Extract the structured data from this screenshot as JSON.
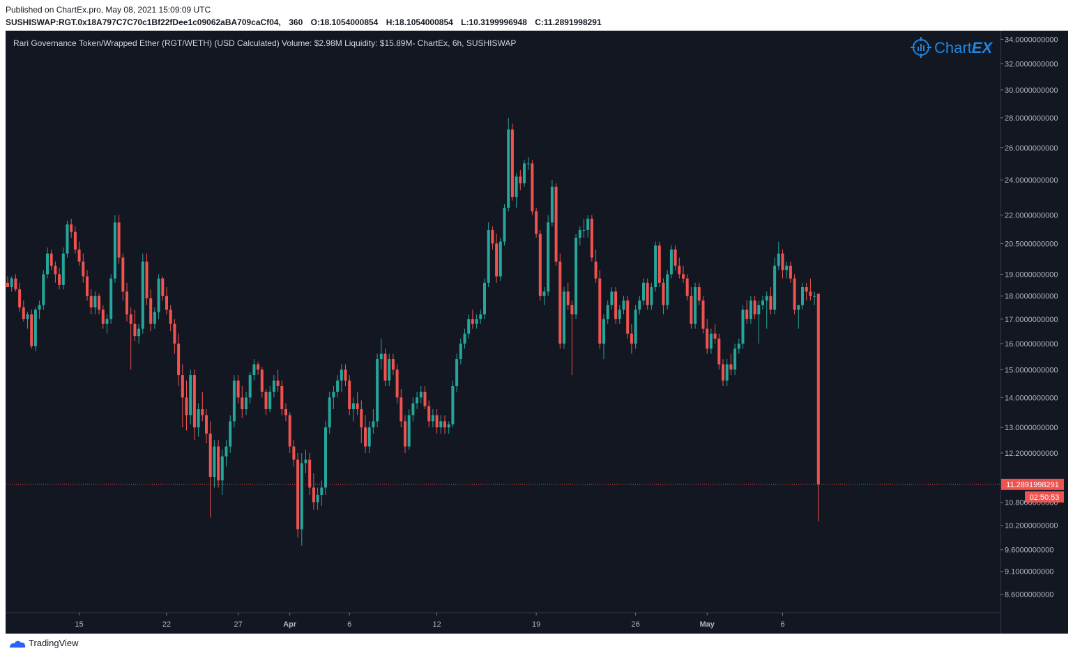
{
  "published": "Published on ChartEx.pro, May 08, 2021 15:09:09 UTC",
  "symbol_line": {
    "symbol": "SUSHISWAP:RGT.0x18A797C7C70c1Bf22fDee1c09062aBA709caCf04,",
    "interval": "360",
    "open": "O:18.1054000854",
    "high": "H:18.1054000854",
    "low": "L:10.3199996948",
    "close": "C:11.2891998291"
  },
  "legend_text": "Rari Governance Token/Wrapped Ether (RGT/WETH) (USD Calculated) Volume:  $2.98M  Liquidity:  $15.89M- ChartEx, 6h,  SUSHISWAP",
  "watermark": {
    "logo": "chartex-logo-icon",
    "text_a": "Chart",
    "text_b": "EX"
  },
  "footer": {
    "brand": "TradingView",
    "icon": "tradingview-logo-icon"
  },
  "colors": {
    "background": "#131722",
    "up": "#26a69a",
    "down": "#ef5350",
    "axis_text": "#b2b5be"
  },
  "chart_data": {
    "type": "candlestick",
    "scale": "log",
    "ylim": [
      8.3,
      34.5
    ],
    "y_ticks": [
      {
        "value": 34.0,
        "label": "34.0000000000"
      },
      {
        "value": 32.0,
        "label": "32.0000000000"
      },
      {
        "value": 30.0,
        "label": "30.0000000000"
      },
      {
        "value": 28.0,
        "label": "28.0000000000"
      },
      {
        "value": 26.0,
        "label": "26.0000000000"
      },
      {
        "value": 24.0,
        "label": "24.0000000000"
      },
      {
        "value": 22.0,
        "label": "22.0000000000"
      },
      {
        "value": 20.5,
        "label": "20.5000000000"
      },
      {
        "value": 19.0,
        "label": "19.0000000000"
      },
      {
        "value": 18.0,
        "label": "18.0000000000"
      },
      {
        "value": 17.0,
        "label": "17.0000000000"
      },
      {
        "value": 16.0,
        "label": "16.0000000000"
      },
      {
        "value": 15.0,
        "label": "15.0000000000"
      },
      {
        "value": 14.0,
        "label": "14.0000000000"
      },
      {
        "value": 13.0,
        "label": "13.0000000000"
      },
      {
        "value": 12.2,
        "label": "12.2000000000"
      },
      {
        "value": 10.8,
        "label": "10.8000000000"
      },
      {
        "value": 10.2,
        "label": "10.2000000000"
      },
      {
        "value": 9.6,
        "label": "9.6000000000"
      },
      {
        "value": 9.1,
        "label": "9.1000000000"
      },
      {
        "value": 8.6,
        "label": "8.6000000000"
      }
    ],
    "x_ticks": [
      {
        "index": 18,
        "label": "15",
        "bold": false
      },
      {
        "index": 40,
        "label": "22",
        "bold": false
      },
      {
        "index": 58,
        "label": "27",
        "bold": false
      },
      {
        "index": 71,
        "label": "Apr",
        "bold": true
      },
      {
        "index": 86,
        "label": "6",
        "bold": false
      },
      {
        "index": 108,
        "label": "12",
        "bold": false
      },
      {
        "index": 133,
        "label": "19",
        "bold": false
      },
      {
        "index": 158,
        "label": "26",
        "bold": false
      },
      {
        "index": 176,
        "label": "May",
        "bold": true
      },
      {
        "index": 195,
        "label": "6",
        "bold": false
      }
    ],
    "last_price": {
      "value": 11.2891998291,
      "label": "11.2891998291",
      "countdown": "02:50:53"
    },
    "candles": [
      [
        18.6,
        18.9,
        18.4,
        18.4
      ],
      [
        18.4,
        18.9,
        18.2,
        18.8
      ],
      [
        18.8,
        19.0,
        18.2,
        18.3
      ],
      [
        18.3,
        18.6,
        17.3,
        17.5
      ],
      [
        17.5,
        17.8,
        16.9,
        17.0
      ],
      [
        17.0,
        17.3,
        16.6,
        17.2
      ],
      [
        17.2,
        17.4,
        15.8,
        15.9
      ],
      [
        15.9,
        17.5,
        15.7,
        17.4
      ],
      [
        17.4,
        17.8,
        17.0,
        17.6
      ],
      [
        17.6,
        19.2,
        17.4,
        19.0
      ],
      [
        19.0,
        20.3,
        18.8,
        20.0
      ],
      [
        20.0,
        20.2,
        19.2,
        19.4
      ],
      [
        19.4,
        19.6,
        18.6,
        19.0
      ],
      [
        19.0,
        19.3,
        18.3,
        18.5
      ],
      [
        18.5,
        20.3,
        18.3,
        20.0
      ],
      [
        20.0,
        21.7,
        19.8,
        21.5
      ],
      [
        21.5,
        21.8,
        20.8,
        21.1
      ],
      [
        21.1,
        21.4,
        20.0,
        20.2
      ],
      [
        20.2,
        20.6,
        19.4,
        19.6
      ],
      [
        19.6,
        20.0,
        18.6,
        18.9
      ],
      [
        18.9,
        19.2,
        17.8,
        18.0
      ],
      [
        18.0,
        18.3,
        17.2,
        17.5
      ],
      [
        17.5,
        18.2,
        17.2,
        18.0
      ],
      [
        18.0,
        18.1,
        17.2,
        17.4
      ],
      [
        17.4,
        17.6,
        16.6,
        16.8
      ],
      [
        16.8,
        17.2,
        16.4,
        17.0
      ],
      [
        17.0,
        19.0,
        16.8,
        18.8
      ],
      [
        18.8,
        22.0,
        18.6,
        21.6
      ],
      [
        21.6,
        22.0,
        19.5,
        19.8
      ],
      [
        19.8,
        20.0,
        17.8,
        18.2
      ],
      [
        18.2,
        18.6,
        16.9,
        17.2
      ],
      [
        17.2,
        17.5,
        15.0,
        16.8
      ],
      [
        16.8,
        17.4,
        16.1,
        16.3
      ],
      [
        16.3,
        16.8,
        16.0,
        16.6
      ],
      [
        16.6,
        20.0,
        16.4,
        19.6
      ],
      [
        19.6,
        20.0,
        17.6,
        17.9
      ],
      [
        17.9,
        18.3,
        16.5,
        16.8
      ],
      [
        16.8,
        17.5,
        16.6,
        17.3
      ],
      [
        17.3,
        19.0,
        17.0,
        18.8
      ],
      [
        18.8,
        18.9,
        17.8,
        18.0
      ],
      [
        18.0,
        18.4,
        17.2,
        17.4
      ],
      [
        17.4,
        17.6,
        16.5,
        16.8
      ],
      [
        16.8,
        17.0,
        15.6,
        16.0
      ],
      [
        16.0,
        16.4,
        14.4,
        14.8
      ],
      [
        14.8,
        15.2,
        13.0,
        14.0
      ],
      [
        14.0,
        14.6,
        12.9,
        13.4
      ],
      [
        13.4,
        15.0,
        13.1,
        14.8
      ],
      [
        14.8,
        15.0,
        12.6,
        13.0
      ],
      [
        13.0,
        13.8,
        12.7,
        13.6
      ],
      [
        13.6,
        14.2,
        13.2,
        13.4
      ],
      [
        13.4,
        13.6,
        12.5,
        12.8
      ],
      [
        12.8,
        13.2,
        10.4,
        11.5
      ],
      [
        11.5,
        12.6,
        11.2,
        12.4
      ],
      [
        12.4,
        12.6,
        11.2,
        11.4
      ],
      [
        11.4,
        12.3,
        11.0,
        12.1
      ],
      [
        12.1,
        12.6,
        11.8,
        12.4
      ],
      [
        12.4,
        13.4,
        12.2,
        13.2
      ],
      [
        13.2,
        14.8,
        13.0,
        14.6
      ],
      [
        14.6,
        14.8,
        13.8,
        14.0
      ],
      [
        14.0,
        14.4,
        13.3,
        13.6
      ],
      [
        13.6,
        14.2,
        13.4,
        14.0
      ],
      [
        14.0,
        14.9,
        13.8,
        14.8
      ],
      [
        14.8,
        15.4,
        14.6,
        15.2
      ],
      [
        15.2,
        15.3,
        14.8,
        15.0
      ],
      [
        15.0,
        15.1,
        14.0,
        14.2
      ],
      [
        14.2,
        14.3,
        13.4,
        13.6
      ],
      [
        13.6,
        14.4,
        13.5,
        14.2
      ],
      [
        14.2,
        14.8,
        14.0,
        14.6
      ],
      [
        14.6,
        15.0,
        14.2,
        14.4
      ],
      [
        14.4,
        14.6,
        13.4,
        13.6
      ],
      [
        13.6,
        13.8,
        13.2,
        13.4
      ],
      [
        13.4,
        13.5,
        12.2,
        12.4
      ],
      [
        12.4,
        12.6,
        11.8,
        12.0
      ],
      [
        12.0,
        12.2,
        9.9,
        10.1
      ],
      [
        10.1,
        12.2,
        9.7,
        11.9
      ],
      [
        11.9,
        12.3,
        11.6,
        12.0
      ],
      [
        12.0,
        12.2,
        11.0,
        11.2
      ],
      [
        11.2,
        11.6,
        10.6,
        10.8
      ],
      [
        10.8,
        11.2,
        10.6,
        11.0
      ],
      [
        11.0,
        11.4,
        10.7,
        11.2
      ],
      [
        11.2,
        13.2,
        11.0,
        13.0
      ],
      [
        13.0,
        14.2,
        12.8,
        14.0
      ],
      [
        14.0,
        14.4,
        13.6,
        14.2
      ],
      [
        14.2,
        14.8,
        14.0,
        14.6
      ],
      [
        14.6,
        15.2,
        14.2,
        15.0
      ],
      [
        15.0,
        15.2,
        14.4,
        14.6
      ],
      [
        14.6,
        14.8,
        13.4,
        13.6
      ],
      [
        13.6,
        14.0,
        13.2,
        13.8
      ],
      [
        13.8,
        14.2,
        13.4,
        13.6
      ],
      [
        13.6,
        13.9,
        12.5,
        13.0
      ],
      [
        13.0,
        13.4,
        12.2,
        12.4
      ],
      [
        12.4,
        13.2,
        12.2,
        13.0
      ],
      [
        13.0,
        13.6,
        12.8,
        13.2
      ],
      [
        13.2,
        15.6,
        13.0,
        15.4
      ],
      [
        15.4,
        16.2,
        15.0,
        15.6
      ],
      [
        15.6,
        15.8,
        14.4,
        14.6
      ],
      [
        14.6,
        15.6,
        14.4,
        15.4
      ],
      [
        15.4,
        15.6,
        14.8,
        15.0
      ],
      [
        15.0,
        15.2,
        13.8,
        14.0
      ],
      [
        14.0,
        14.3,
        13.0,
        13.2
      ],
      [
        13.2,
        13.4,
        12.2,
        12.4
      ],
      [
        12.4,
        13.6,
        12.3,
        13.4
      ],
      [
        13.4,
        14.0,
        13.2,
        13.8
      ],
      [
        13.8,
        14.2,
        13.6,
        14.0
      ],
      [
        14.0,
        14.4,
        13.8,
        14.2
      ],
      [
        14.2,
        14.4,
        13.6,
        13.7
      ],
      [
        13.7,
        13.9,
        13.0,
        13.2
      ],
      [
        13.2,
        13.6,
        13.0,
        13.4
      ],
      [
        13.4,
        13.6,
        12.8,
        13.0
      ],
      [
        13.0,
        13.4,
        12.8,
        13.2
      ],
      [
        13.2,
        13.4,
        12.8,
        13.0
      ],
      [
        13.0,
        13.2,
        12.8,
        13.1
      ],
      [
        13.1,
        14.6,
        13.0,
        14.4
      ],
      [
        14.4,
        15.6,
        14.2,
        15.4
      ],
      [
        15.4,
        16.2,
        15.2,
        16.0
      ],
      [
        16.0,
        16.6,
        15.8,
        16.4
      ],
      [
        16.4,
        17.2,
        16.2,
        17.0
      ],
      [
        17.0,
        17.4,
        16.6,
        16.8
      ],
      [
        16.8,
        17.2,
        16.6,
        17.0
      ],
      [
        17.0,
        17.4,
        16.8,
        17.2
      ],
      [
        17.2,
        18.8,
        17.0,
        18.6
      ],
      [
        18.6,
        21.6,
        18.4,
        21.2
      ],
      [
        21.2,
        21.4,
        20.2,
        20.5
      ],
      [
        20.5,
        21.0,
        18.6,
        18.9
      ],
      [
        18.9,
        20.8,
        18.7,
        20.6
      ],
      [
        20.6,
        22.6,
        20.4,
        22.4
      ],
      [
        22.4,
        28.0,
        22.2,
        27.2
      ],
      [
        27.2,
        27.6,
        22.8,
        23.0
      ],
      [
        23.0,
        24.4,
        22.4,
        24.2
      ],
      [
        24.2,
        24.6,
        23.4,
        23.8
      ],
      [
        23.8,
        25.2,
        23.6,
        25.0
      ],
      [
        25.0,
        25.4,
        24.6,
        25.0
      ],
      [
        25.0,
        25.2,
        22.0,
        22.2
      ],
      [
        22.2,
        22.4,
        20.8,
        21.0
      ],
      [
        21.0,
        21.2,
        17.8,
        18.0
      ],
      [
        18.0,
        18.4,
        17.6,
        18.2
      ],
      [
        18.2,
        22.0,
        18.0,
        21.6
      ],
      [
        21.6,
        24.0,
        21.4,
        23.6
      ],
      [
        23.6,
        23.8,
        19.4,
        19.6
      ],
      [
        19.6,
        20.0,
        15.8,
        16.0
      ],
      [
        16.0,
        18.4,
        15.8,
        18.2
      ],
      [
        18.2,
        18.6,
        17.4,
        17.6
      ],
      [
        17.6,
        17.8,
        14.8,
        17.2
      ],
      [
        17.2,
        21.0,
        17.0,
        20.8
      ],
      [
        20.8,
        21.4,
        20.4,
        21.2
      ],
      [
        21.2,
        21.8,
        20.8,
        21.2
      ],
      [
        21.2,
        22.0,
        20.8,
        21.8
      ],
      [
        21.8,
        22.0,
        19.6,
        19.8
      ],
      [
        19.6,
        20.2,
        18.6,
        18.8
      ],
      [
        18.8,
        19.2,
        15.8,
        16.0
      ],
      [
        16.0,
        17.2,
        15.4,
        17.0
      ],
      [
        17.0,
        17.8,
        16.8,
        17.6
      ],
      [
        17.6,
        18.4,
        17.4,
        18.2
      ],
      [
        18.2,
        18.4,
        16.8,
        17.0
      ],
      [
        17.0,
        17.6,
        16.8,
        17.4
      ],
      [
        17.4,
        18.0,
        17.2,
        17.8
      ],
      [
        17.8,
        18.0,
        16.2,
        16.4
      ],
      [
        16.4,
        16.8,
        15.6,
        16.0
      ],
      [
        16.0,
        17.6,
        15.8,
        17.4
      ],
      [
        17.4,
        18.0,
        17.2,
        17.8
      ],
      [
        17.8,
        18.8,
        17.6,
        18.6
      ],
      [
        18.6,
        18.8,
        17.4,
        17.6
      ],
      [
        17.6,
        18.6,
        17.4,
        18.4
      ],
      [
        18.4,
        20.6,
        18.2,
        20.4
      ],
      [
        20.4,
        20.6,
        18.4,
        18.6
      ],
      [
        18.6,
        18.8,
        17.2,
        17.6
      ],
      [
        17.6,
        19.2,
        17.4,
        19.0
      ],
      [
        19.0,
        20.4,
        18.8,
        20.2
      ],
      [
        20.2,
        20.4,
        19.2,
        19.4
      ],
      [
        19.4,
        19.8,
        18.8,
        19.0
      ],
      [
        19.0,
        19.4,
        18.6,
        18.8
      ],
      [
        18.8,
        19.0,
        17.8,
        18.0
      ],
      [
        18.0,
        18.4,
        16.6,
        16.8
      ],
      [
        16.8,
        18.6,
        16.6,
        18.4
      ],
      [
        18.4,
        18.6,
        17.6,
        17.8
      ],
      [
        17.8,
        18.0,
        16.4,
        16.6
      ],
      [
        16.6,
        17.0,
        15.6,
        15.8
      ],
      [
        15.8,
        16.6,
        15.6,
        16.4
      ],
      [
        16.4,
        16.8,
        16.0,
        16.2
      ],
      [
        16.2,
        16.4,
        15.0,
        15.2
      ],
      [
        15.2,
        15.4,
        14.4,
        14.6
      ],
      [
        14.6,
        15.4,
        14.4,
        15.2
      ],
      [
        15.2,
        15.6,
        14.8,
        15.0
      ],
      [
        15.0,
        16.0,
        14.8,
        15.8
      ],
      [
        15.8,
        16.2,
        15.6,
        16.0
      ],
      [
        16.0,
        17.6,
        15.8,
        17.4
      ],
      [
        17.4,
        17.8,
        16.8,
        17.0
      ],
      [
        17.0,
        18.0,
        16.8,
        17.8
      ],
      [
        17.8,
        18.0,
        17.0,
        17.2
      ],
      [
        17.2,
        17.8,
        16.0,
        17.6
      ],
      [
        17.6,
        18.0,
        17.4,
        17.8
      ],
      [
        17.8,
        18.2,
        16.6,
        18.0
      ],
      [
        18.0,
        18.4,
        17.2,
        17.4
      ],
      [
        17.4,
        19.8,
        17.2,
        19.4
      ],
      [
        19.4,
        20.6,
        19.2,
        20.0
      ],
      [
        20.0,
        20.2,
        18.8,
        19.2
      ],
      [
        19.2,
        19.6,
        18.8,
        19.4
      ],
      [
        19.4,
        19.6,
        18.6,
        18.8
      ],
      [
        18.8,
        19.0,
        17.2,
        17.4
      ],
      [
        17.4,
        17.6,
        16.6,
        17.6
      ],
      [
        17.6,
        18.6,
        17.4,
        18.4
      ],
      [
        18.4,
        18.6,
        17.8,
        18.2
      ],
      [
        18.2,
        18.8,
        17.8,
        18.0
      ],
      [
        18.0,
        18.2,
        17.6,
        18.0
      ],
      [
        18.1,
        18.1,
        10.3,
        11.29
      ]
    ]
  }
}
